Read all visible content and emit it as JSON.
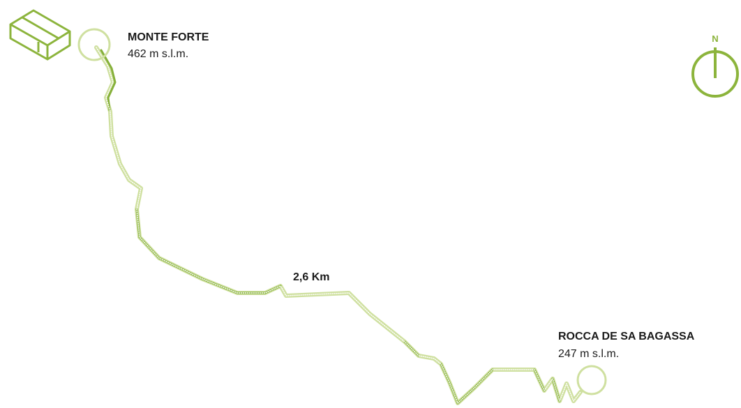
{
  "start": {
    "name": "MONTE FORTE",
    "elevation": "462 m s.l.m."
  },
  "end": {
    "name": "ROCCA DE SA BAGASSA",
    "elevation": "247 m s.l.m."
  },
  "distance": "2,6 Km",
  "compass": "N"
}
